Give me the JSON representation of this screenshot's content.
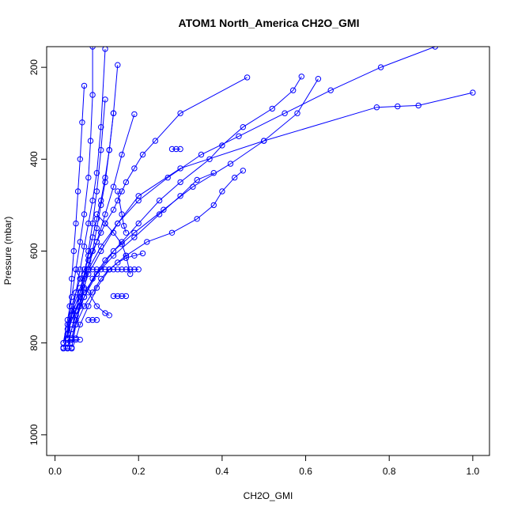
{
  "chart_data": {
    "type": "line",
    "title": "ATOM1 North_America CH2O_GMI",
    "xlabel": "CH2O_GMI",
    "ylabel": "Pressure (mbar)",
    "xlim": [
      -0.02,
      1.04
    ],
    "ylim": [
      1045,
      155
    ],
    "y_inverted": true,
    "x_ticks": [
      0.0,
      0.2,
      0.4,
      0.6,
      0.8,
      1.0
    ],
    "x_tick_labels": [
      "0.0",
      "0.2",
      "0.4",
      "0.6",
      "0.8",
      "1.0"
    ],
    "y_ticks": [
      200,
      400,
      600,
      800,
      1000
    ],
    "y_tick_labels": [
      "200",
      "400",
      "600",
      "800",
      "1000"
    ],
    "grid": false,
    "legend": "none",
    "color": "#0000ff",
    "marker": "open-circle",
    "series": [
      {
        "x": [
          0.03,
          0.03,
          0.04,
          0.05,
          0.06,
          0.07,
          0.08,
          0.09,
          0.1,
          0.11,
          0.12,
          0.14,
          0.15,
          0.16,
          0.17,
          0.19,
          0.21,
          0.24,
          0.3,
          0.46
        ],
        "y": [
          790,
          760,
          720,
          690,
          660,
          640,
          620,
          600,
          580,
          560,
          540,
          510,
          490,
          470,
          450,
          420,
          390,
          360,
          300,
          222
        ]
      },
      {
        "x": [
          0.03,
          0.04,
          0.05,
          0.07,
          0.09,
          0.12,
          0.16,
          0.2,
          0.25,
          0.3,
          0.37,
          0.4,
          0.45,
          0.52,
          0.57,
          0.59
        ],
        "y": [
          800,
          770,
          740,
          700,
          660,
          620,
          580,
          540,
          490,
          450,
          400,
          370,
          330,
          290,
          250,
          220
        ]
      },
      {
        "x": [
          0.04,
          0.05,
          0.07,
          0.1,
          0.14,
          0.19,
          0.26,
          0.33,
          0.42,
          0.5,
          0.58,
          0.63
        ],
        "y": [
          790,
          750,
          700,
          650,
          600,
          560,
          510,
          460,
          410,
          360,
          300,
          225
        ]
      },
      {
        "x": [
          0.03,
          0.04,
          0.06,
          0.08,
          0.11,
          0.15,
          0.2,
          0.27,
          0.35,
          0.44,
          0.55,
          0.66,
          0.78,
          0.91
        ],
        "y": [
          780,
          740,
          690,
          640,
          590,
          540,
          490,
          440,
          390,
          350,
          300,
          250,
          200,
          155
        ]
      },
      {
        "x": [
          0.02,
          0.03,
          0.04,
          0.06,
          0.08,
          0.11,
          0.15,
          0.2,
          0.3,
          0.5,
          0.77,
          0.82,
          0.87,
          1.0
        ],
        "y": [
          810,
          780,
          750,
          700,
          650,
          600,
          540,
          480,
          420,
          360,
          287,
          285,
          283,
          255
        ]
      },
      {
        "x": [
          0.05,
          0.06,
          0.08,
          0.1,
          0.13,
          0.17,
          0.22,
          0.28,
          0.34,
          0.38,
          0.4,
          0.43,
          0.45
        ],
        "y": [
          790,
          760,
          720,
          680,
          640,
          610,
          580,
          560,
          530,
          500,
          470,
          440,
          425
        ]
      },
      {
        "x": [
          0.02,
          0.03,
          0.05,
          0.07,
          0.1,
          0.14,
          0.19,
          0.25,
          0.3,
          0.34,
          0.38
        ],
        "y": [
          800,
          770,
          730,
          690,
          650,
          610,
          570,
          520,
          480,
          445,
          430
        ]
      },
      {
        "x": [
          0.03,
          0.04,
          0.05,
          0.06,
          0.07,
          0.08,
          0.09,
          0.1,
          0.11,
          0.12,
          0.13,
          0.14
        ],
        "y": [
          810,
          770,
          730,
          690,
          650,
          610,
          570,
          530,
          490,
          440,
          380,
          300
        ]
      },
      {
        "x": [
          0.04,
          0.05,
          0.06,
          0.07,
          0.08,
          0.09,
          0.1,
          0.11,
          0.12,
          0.13,
          0.14,
          0.15
        ],
        "y": [
          800,
          760,
          720,
          680,
          640,
          600,
          550,
          500,
          450,
          380,
          300,
          195
        ]
      },
      {
        "x": [
          0.03,
          0.04,
          0.05,
          0.06,
          0.07,
          0.08,
          0.09,
          0.1,
          0.11,
          0.12
        ],
        "y": [
          790,
          740,
          690,
          640,
          590,
          540,
          490,
          430,
          330,
          160
        ]
      },
      {
        "x": [
          0.02,
          0.03,
          0.04,
          0.05,
          0.06,
          0.07,
          0.08,
          0.085,
          0.09,
          0.09
        ],
        "y": [
          800,
          750,
          700,
          640,
          580,
          520,
          440,
          360,
          260,
          155
        ]
      },
      {
        "x": [
          0.03,
          0.035,
          0.04,
          0.045,
          0.05,
          0.055,
          0.06,
          0.065,
          0.07
        ],
        "y": [
          790,
          720,
          660,
          600,
          540,
          470,
          400,
          320,
          240
        ]
      },
      {
        "x": [
          0.04,
          0.05,
          0.06,
          0.07,
          0.08,
          0.09,
          0.1,
          0.11,
          0.12
        ],
        "y": [
          810,
          760,
          710,
          660,
          600,
          540,
          470,
          380,
          270
        ]
      },
      {
        "x": [
          0.03,
          0.04,
          0.06,
          0.08,
          0.1,
          0.12,
          0.14,
          0.16,
          0.19
        ],
        "y": [
          780,
          730,
          680,
          630,
          580,
          520,
          460,
          390,
          302
        ]
      },
      {
        "x": [
          0.05,
          0.07,
          0.09,
          0.11,
          0.13,
          0.15,
          0.17,
          0.19,
          0.21
        ],
        "y": [
          760,
          720,
          690,
          660,
          640,
          625,
          615,
          610,
          605
        ]
      },
      {
        "x": [
          0.07,
          0.08,
          0.09,
          0.1,
          0.11,
          0.12,
          0.13,
          0.14,
          0.15,
          0.16,
          0.17,
          0.18,
          0.19,
          0.2
        ],
        "y": [
          640,
          640,
          640,
          640,
          640,
          640,
          640,
          640,
          640,
          640,
          640,
          640,
          640,
          640
        ]
      },
      {
        "x": [
          0.08,
          0.09,
          0.1
        ],
        "y": [
          750,
          750,
          750
        ]
      },
      {
        "x": [
          0.14,
          0.15,
          0.16,
          0.17
        ],
        "y": [
          698,
          698,
          698,
          698
        ]
      },
      {
        "x": [
          0.03,
          0.04,
          0.05,
          0.06
        ],
        "y": [
          793,
          793,
          793,
          793
        ]
      },
      {
        "x": [
          0.02,
          0.03,
          0.04
        ],
        "y": [
          812,
          812,
          812
        ]
      },
      {
        "x": [
          0.28,
          0.29,
          0.3
        ],
        "y": [
          378,
          378,
          378
        ]
      },
      {
        "x": [
          0.1,
          0.12,
          0.14,
          0.16,
          0.17,
          0.18
        ],
        "y": [
          520,
          540,
          560,
          585,
          610,
          650
        ]
      },
      {
        "x": [
          0.05,
          0.06,
          0.08,
          0.1,
          0.12,
          0.13
        ],
        "y": [
          640,
          660,
          690,
          720,
          735,
          740
        ]
      },
      {
        "x": [
          0.15,
          0.16,
          0.165,
          0.17
        ],
        "y": [
          470,
          520,
          545,
          560
        ]
      }
    ]
  }
}
